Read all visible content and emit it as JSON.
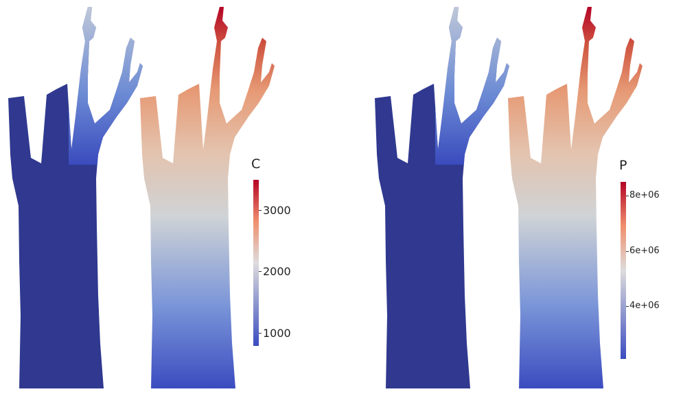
{
  "figures": [
    {
      "id": "panel-c",
      "colorbar": {
        "title": "C",
        "ticks": [
          "1000",
          "2000",
          "3000"
        ],
        "tick_values": [
          1000,
          2000,
          3000
        ],
        "range": [
          800,
          3500
        ]
      }
    },
    {
      "id": "panel-p",
      "colorbar": {
        "title": "P",
        "ticks": [
          "4e+06",
          "6e+06",
          "8e+06"
        ],
        "tick_values": [
          4000000,
          6000000,
          8000000
        ],
        "range": [
          2200000,
          8600000
        ]
      }
    }
  ],
  "colormap": {
    "name": "cool-to-warm",
    "low": "#3b4cc0",
    "mid": "#dddcdc",
    "high": "#b40426",
    "uniform_fill": "#30398f"
  }
}
